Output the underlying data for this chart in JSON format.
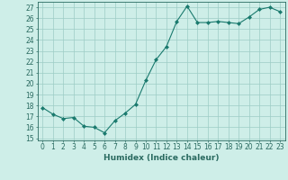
{
  "x": [
    0,
    1,
    2,
    3,
    4,
    5,
    6,
    7,
    8,
    9,
    10,
    11,
    12,
    13,
    14,
    15,
    16,
    17,
    18,
    19,
    20,
    21,
    22,
    23
  ],
  "y": [
    17.8,
    17.2,
    16.8,
    16.9,
    16.1,
    16.0,
    15.5,
    16.6,
    17.3,
    18.1,
    20.3,
    22.2,
    23.4,
    25.7,
    27.1,
    25.6,
    25.6,
    25.7,
    25.6,
    25.5,
    26.1,
    26.8,
    27.0,
    26.6
  ],
  "line_color": "#1a7a6e",
  "marker": "D",
  "marker_size": 2.0,
  "bg_color": "#ceeee8",
  "grid_color": "#9dccc5",
  "xlabel": "Humidex (Indice chaleur)",
  "ylim": [
    14.8,
    27.5
  ],
  "xlim": [
    -0.5,
    23.5
  ],
  "yticks": [
    15,
    16,
    17,
    18,
    19,
    20,
    21,
    22,
    23,
    24,
    25,
    26,
    27
  ],
  "xticks": [
    0,
    1,
    2,
    3,
    4,
    5,
    6,
    7,
    8,
    9,
    10,
    11,
    12,
    13,
    14,
    15,
    16,
    17,
    18,
    19,
    20,
    21,
    22,
    23
  ],
  "font_color": "#2a6a60",
  "label_fontsize": 6.5,
  "tick_fontsize": 5.5
}
